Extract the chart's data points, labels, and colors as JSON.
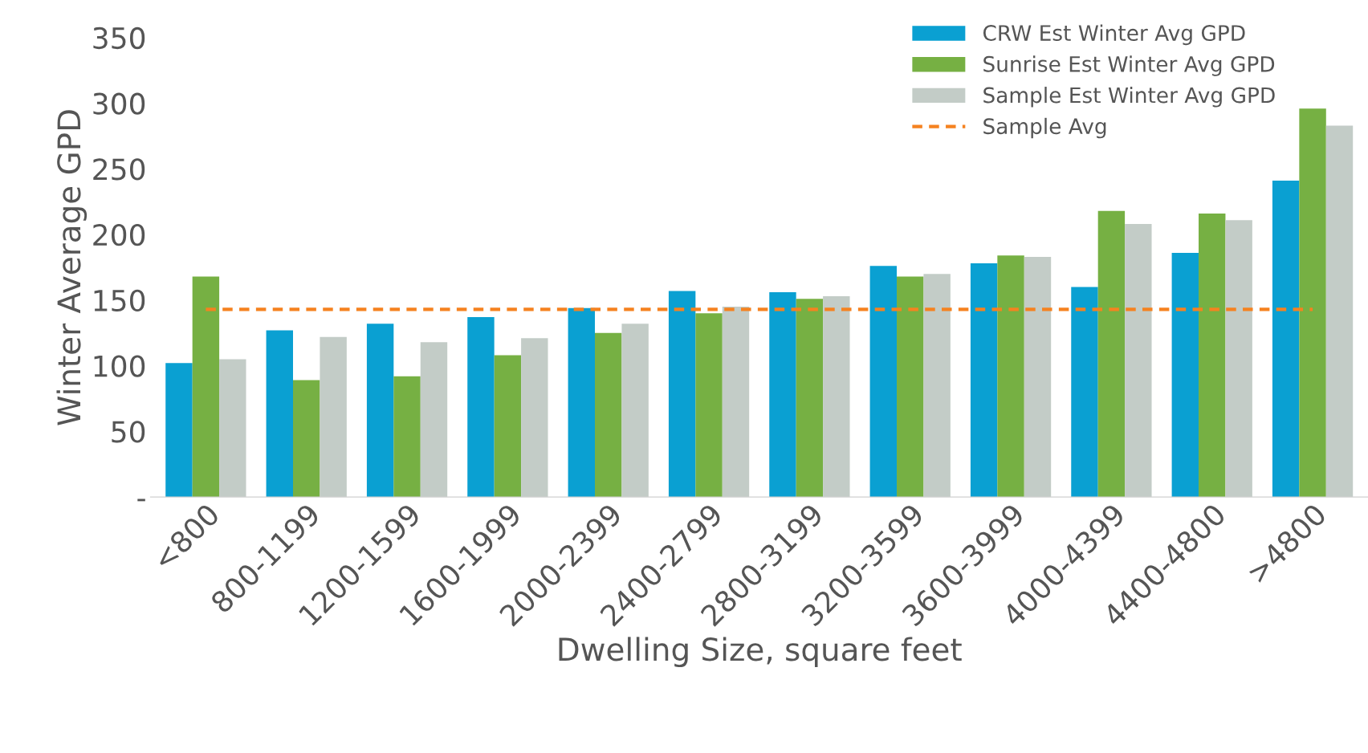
{
  "chart_data": {
    "type": "bar",
    "xlabel": "Dwelling Size, square feet",
    "ylabel": "Winter Average GPD",
    "categories": [
      "<800",
      "800-1199",
      "1200-1599",
      "1600-1999",
      "2000-2399",
      "2400-2799",
      "2800-3199",
      "3200-3599",
      "3600-3999",
      "4000-4399",
      "4400-4800",
      ">4800"
    ],
    "series": [
      {
        "name": "CRW Est Winter Avg GPD",
        "color": "#0aa0d2",
        "values": [
          102,
          127,
          132,
          137,
          144,
          157,
          156,
          176,
          178,
          160,
          186,
          241
        ]
      },
      {
        "name": "Sunrise Est Winter Avg GPD",
        "color": "#76b043",
        "values": [
          168,
          89,
          92,
          108,
          125,
          140,
          151,
          168,
          184,
          218,
          216,
          296
        ]
      },
      {
        "name": "Sample Est Winter Avg GPD",
        "color": "#c3ccc7",
        "values": [
          105,
          122,
          118,
          121,
          132,
          145,
          153,
          170,
          183,
          208,
          211,
          283
        ]
      },
      {
        "name": "Sample Avg",
        "type": "line",
        "color": "#f58220",
        "line_style": "dashed",
        "values": [
          143,
          143,
          143,
          143,
          143,
          143,
          143,
          143,
          143,
          143,
          143,
          143
        ]
      }
    ],
    "ylim": [
      0,
      350
    ],
    "yticks": [
      {
        "value": 0,
        "label": "-"
      },
      50,
      100,
      150,
      200,
      250,
      300,
      350
    ],
    "grid": false,
    "legend": "top right"
  }
}
